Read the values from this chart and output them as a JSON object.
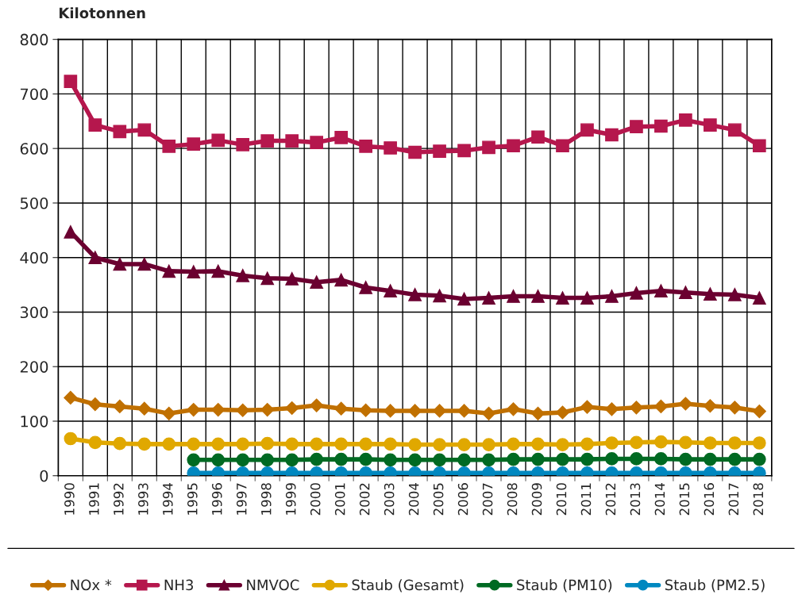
{
  "chart_data": {
    "type": "line",
    "ylabel": "Kilotonnen",
    "categories": [
      "1990",
      "1991",
      "1992",
      "1993",
      "1994",
      "1995",
      "1996",
      "1997",
      "1998",
      "1999",
      "2000",
      "2001",
      "2002",
      "2003",
      "2004",
      "2005",
      "2006",
      "2007",
      "2008",
      "2009",
      "2010",
      "2011",
      "2012",
      "2013",
      "2014",
      "2015",
      "2016",
      "2017",
      "2018"
    ],
    "ylim": [
      0,
      800
    ],
    "yticks": [
      0,
      100,
      200,
      300,
      400,
      500,
      600,
      700,
      800
    ],
    "grid": true,
    "legend": "bottom",
    "series": [
      {
        "name": "NOx *",
        "color": "#c07000",
        "marker": "diamond",
        "values": [
          143,
          131,
          127,
          123,
          114,
          121,
          121,
          120,
          121,
          124,
          129,
          123,
          120,
          119,
          119,
          119,
          119,
          114,
          122,
          114,
          116,
          126,
          122,
          125,
          127,
          132,
          128,
          125,
          118
        ]
      },
      {
        "name": "NH3",
        "color": "#b5174d",
        "marker": "square",
        "values": [
          723,
          643,
          631,
          634,
          604,
          608,
          615,
          607,
          614,
          614,
          611,
          620,
          604,
          601,
          593,
          595,
          596,
          602,
          605,
          621,
          605,
          634,
          625,
          640,
          641,
          652,
          643,
          634,
          605
        ]
      },
      {
        "name": "NMVOC",
        "color": "#6b0030",
        "marker": "triangle",
        "values": [
          447,
          400,
          388,
          388,
          375,
          374,
          375,
          367,
          362,
          361,
          355,
          359,
          345,
          339,
          332,
          330,
          324,
          326,
          329,
          329,
          326,
          326,
          329,
          335,
          339,
          336,
          333,
          332,
          326
        ]
      },
      {
        "name": "Staub (Gesamt)",
        "color": "#e0a800",
        "marker": "circle",
        "values": [
          68,
          61,
          59,
          58,
          58,
          58,
          58,
          58,
          59,
          58,
          58,
          58,
          58,
          58,
          57,
          57,
          57,
          57,
          58,
          58,
          57,
          58,
          60,
          61,
          62,
          61,
          60,
          60,
          60
        ]
      },
      {
        "name": "Staub (PM10)",
        "color": "#006a23",
        "marker": "circle",
        "values": [
          null,
          null,
          null,
          null,
          null,
          29,
          29,
          29,
          29,
          29,
          30,
          30,
          30,
          29,
          29,
          29,
          29,
          29,
          30,
          30,
          30,
          30,
          31,
          31,
          31,
          30,
          30,
          30,
          30
        ]
      },
      {
        "name": "Staub (PM2.5)",
        "color": "#0088c0",
        "marker": "circle",
        "values": [
          null,
          null,
          null,
          null,
          null,
          5,
          5,
          5,
          5,
          5,
          5,
          5,
          5,
          5,
          5,
          5,
          5,
          5,
          5,
          5,
          5,
          5,
          5,
          5,
          5,
          5,
          5,
          5,
          5
        ]
      }
    ]
  }
}
